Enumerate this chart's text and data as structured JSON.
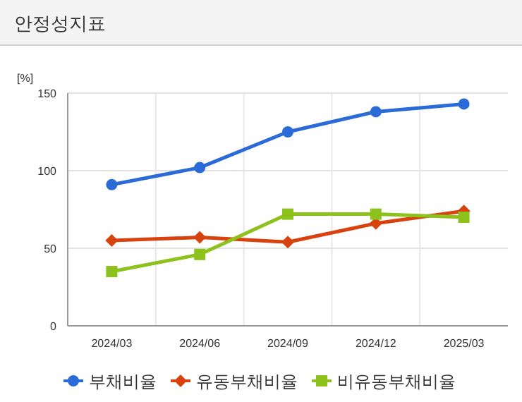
{
  "chart_data": {
    "type": "line",
    "title": "안정성지표",
    "ylabel": "[%]",
    "categories": [
      "2024/03",
      "2024/06",
      "2024/09",
      "2024/12",
      "2025/03"
    ],
    "series": [
      {
        "name": "부채비율",
        "color": "#2b6bd8",
        "marker": "circle",
        "values": [
          91,
          102,
          125,
          138,
          143
        ]
      },
      {
        "name": "유동부채비율",
        "color": "#d8420f",
        "marker": "diamond",
        "values": [
          55,
          57,
          54,
          66,
          74
        ]
      },
      {
        "name": "비유동부채비율",
        "color": "#8cc21b",
        "marker": "square",
        "values": [
          35,
          46,
          72,
          72,
          70
        ]
      }
    ],
    "ylim": [
      0,
      150
    ],
    "yticks": [
      0,
      50,
      100,
      150
    ],
    "grid": true,
    "legend": "bottom"
  }
}
